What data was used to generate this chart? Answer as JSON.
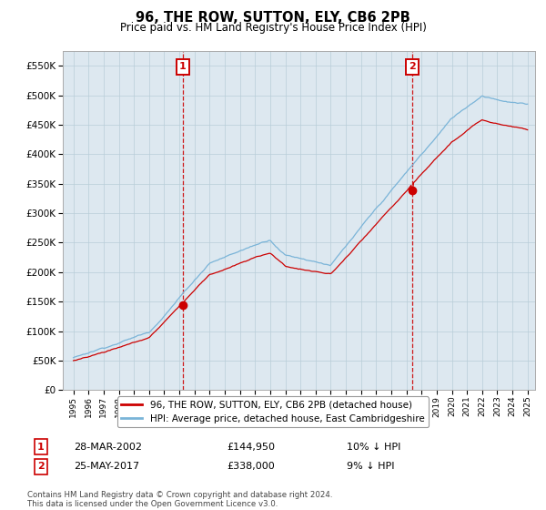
{
  "title": "96, THE ROW, SUTTON, ELY, CB6 2PB",
  "subtitle": "Price paid vs. HM Land Registry's House Price Index (HPI)",
  "legend_line1": "96, THE ROW, SUTTON, ELY, CB6 2PB (detached house)",
  "legend_line2": "HPI: Average price, detached house, East Cambridgeshire",
  "annotation1_label": "1",
  "annotation1_date": "28-MAR-2002",
  "annotation1_price": "£144,950",
  "annotation1_hpi": "10% ↓ HPI",
  "annotation2_label": "2",
  "annotation2_date": "25-MAY-2017",
  "annotation2_price": "£338,000",
  "annotation2_hpi": "9% ↓ HPI",
  "footnote": "Contains HM Land Registry data © Crown copyright and database right 2024.\nThis data is licensed under the Open Government Licence v3.0.",
  "hpi_color": "#7ab4d8",
  "price_color": "#cc0000",
  "annotation_color": "#cc0000",
  "background_color": "#ffffff",
  "chart_bg": "#dde8f0",
  "grid_color": "#b8cdd8",
  "ylim": [
    0,
    575000
  ],
  "yticks": [
    0,
    50000,
    100000,
    150000,
    200000,
    250000,
    300000,
    350000,
    400000,
    450000,
    500000,
    550000
  ],
  "sale1_year": 2002.23,
  "sale1_price": 144950,
  "sale2_year": 2017.39,
  "sale2_price": 338000,
  "n_points": 360
}
